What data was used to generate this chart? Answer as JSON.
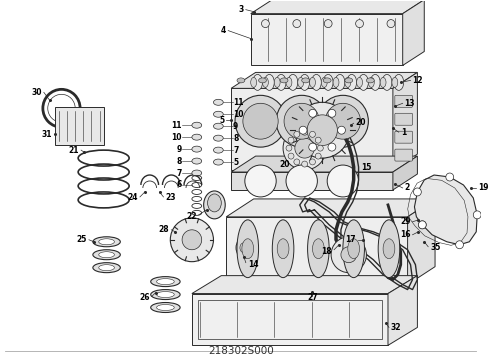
{
  "title": "218302S000",
  "background_color": "#ffffff",
  "figure_width": 4.9,
  "figure_height": 3.6,
  "dpi": 100,
  "lc": "#2a2a2a",
  "label_fontsize": 5.5,
  "label_color": "#000000",
  "bottom_label": "218302S000"
}
